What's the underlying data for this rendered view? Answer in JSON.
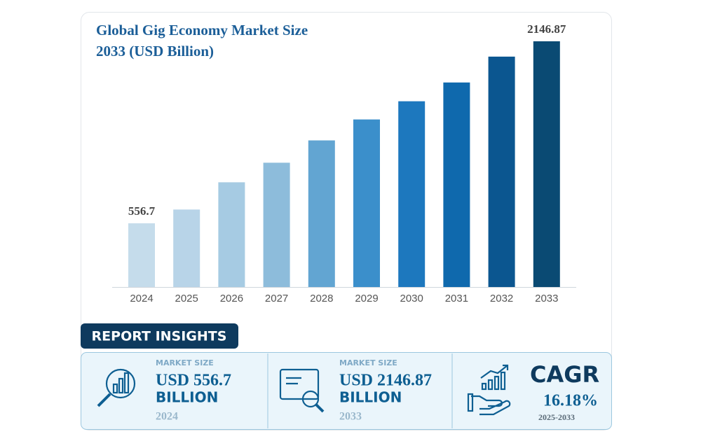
{
  "chart_data": {
    "type": "bar",
    "title": [
      "Global Gig Economy Market Size",
      "2033 (USD Billion)"
    ],
    "categories": [
      "2024",
      "2025",
      "2026",
      "2027",
      "2028",
      "2029",
      "2030",
      "2031",
      "2032",
      "2033"
    ],
    "values": [
      556.7,
      677,
      915,
      1086,
      1281,
      1464,
      1623,
      1787,
      2013,
      2146.87
    ],
    "colors": [
      "#c5dceb",
      "#b8d4e8",
      "#a6cbe3",
      "#8dbcdb",
      "#62a5d2",
      "#3b8fcb",
      "#1d78be",
      "#0f69ad",
      "#0b5690",
      "#0a4a73"
    ]
  },
  "insights": {
    "title": "REPORT INSIGHTS",
    "items": [
      {
        "label": "MARKET SIZE",
        "value": "USD 556.7",
        "unit": "BILLION",
        "period": "2024"
      },
      {
        "label": "MARKET SIZE",
        "value": "USD 2146.87",
        "unit": "BILLION",
        "period": "2033"
      },
      {
        "label": "CAGR",
        "value": "16.18%",
        "period": "2025-2033"
      }
    ]
  }
}
